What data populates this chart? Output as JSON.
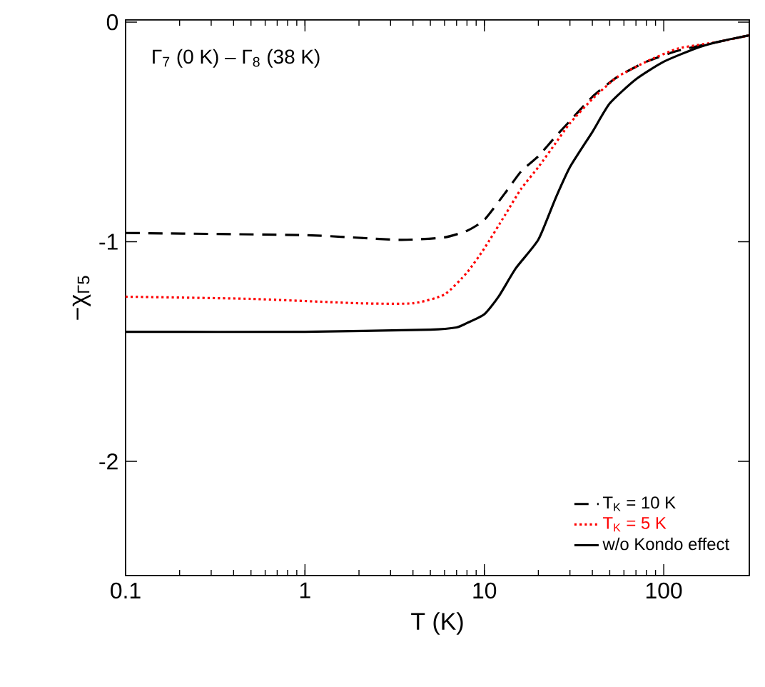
{
  "chart_data": {
    "type": "line",
    "xlabel": "T (K)",
    "ylabel": "−χ$_{Γ5}$",
    "annotations": [
      "Γ$_{7}$ (0 K) – Γ$_{8}$ (38 K)"
    ],
    "log": "x",
    "xlim": [
      0.1,
      300
    ],
    "ylim": [
      -2.52,
      0.01
    ],
    "xticks": [
      0.1,
      1,
      10,
      100
    ],
    "yticks": [
      -2,
      -1,
      0
    ],
    "legend": "bottom right",
    "grid": false,
    "series": [
      {
        "name": "T$_{K}$ = 10 K",
        "color": "#000000",
        "line_style": "dashed",
        "x": [
          0.1,
          1,
          3,
          4,
          6,
          8,
          10,
          13,
          16,
          20,
          25,
          30,
          40,
          55,
          80,
          120,
          200,
          300
        ],
        "values": [
          -0.96,
          -0.97,
          -0.99,
          -0.99,
          -0.98,
          -0.95,
          -0.9,
          -0.78,
          -0.68,
          -0.61,
          -0.52,
          -0.45,
          -0.34,
          -0.25,
          -0.18,
          -0.13,
          -0.09,
          -0.06
        ]
      },
      {
        "name": "T$_{K}$ = 5 K",
        "color": "#ff0000",
        "line_style": "dotted",
        "x": [
          0.1,
          0.5,
          2,
          4,
          6,
          8,
          10,
          13,
          16,
          20,
          25,
          30,
          40,
          55,
          80,
          120,
          200,
          300
        ],
        "values": [
          -1.25,
          -1.26,
          -1.28,
          -1.28,
          -1.24,
          -1.14,
          -1.03,
          -0.88,
          -0.76,
          -0.66,
          -0.55,
          -0.46,
          -0.35,
          -0.25,
          -0.18,
          -0.12,
          -0.09,
          -0.06
        ]
      },
      {
        "name": "w/o Kondo effect",
        "color": "#000000",
        "line_style": "solid",
        "x": [
          0.1,
          1,
          5,
          7,
          8,
          10,
          12,
          15,
          20,
          25,
          30,
          40,
          50,
          70,
          100,
          150,
          200,
          300
        ],
        "values": [
          -1.41,
          -1.41,
          -1.4,
          -1.39,
          -1.37,
          -1.33,
          -1.25,
          -1.12,
          -0.99,
          -0.8,
          -0.66,
          -0.5,
          -0.37,
          -0.26,
          -0.18,
          -0.12,
          -0.09,
          -0.06
        ]
      }
    ]
  }
}
